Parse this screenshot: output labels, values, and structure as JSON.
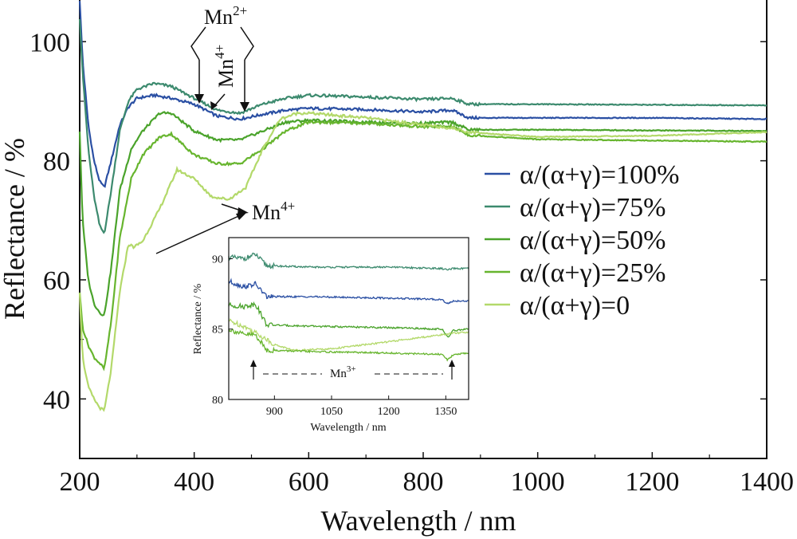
{
  "chart_data": [
    {
      "type": "line",
      "xlabel": "Wavelength / nm",
      "ylabel": "Reflectance / %",
      "xlim": [
        200,
        1400
      ],
      "ylim": [
        30,
        107
      ],
      "xticks": [
        200,
        400,
        600,
        800,
        1000,
        1200,
        1400
      ],
      "yticks": [
        40,
        60,
        80,
        100
      ],
      "legend_position": "right",
      "series": [
        {
          "name": "α/(α+γ)=100%",
          "color": "#2a4fa3",
          "x": [
            200,
            205,
            215,
            225,
            235,
            243,
            255,
            270,
            285,
            300,
            330,
            360,
            400,
            440,
            480,
            520,
            560,
            600,
            700,
            800,
            850,
            880,
            1000,
            1200,
            1400
          ],
          "y": [
            107,
            97,
            86,
            80,
            76.5,
            75.5,
            80,
            86,
            89,
            90.5,
            91,
            90.5,
            89.5,
            87.5,
            87,
            87.8,
            88.5,
            88.8,
            88.6,
            88.2,
            88.5,
            87.2,
            87.2,
            87.2,
            87
          ]
        },
        {
          "name": "α/(α+γ)=75%",
          "color": "#3c8a6e",
          "x": [
            200,
            205,
            215,
            225,
            235,
            243,
            255,
            270,
            285,
            300,
            330,
            360,
            400,
            440,
            480,
            520,
            560,
            600,
            700,
            800,
            850,
            880,
            1000,
            1200,
            1400
          ],
          "y": [
            104,
            95,
            82,
            74,
            69,
            67.8,
            75,
            85,
            90,
            92,
            93,
            92.5,
            90.5,
            88.5,
            88,
            89.5,
            90.5,
            91,
            90.7,
            90.3,
            90.5,
            89.5,
            89.5,
            89.4,
            89.3
          ]
        },
        {
          "name": "α/(α+γ)=50%",
          "color": "#4aa32b",
          "x": [
            200,
            205,
            215,
            225,
            235,
            243,
            255,
            270,
            290,
            310,
            340,
            360,
            400,
            440,
            480,
            520,
            560,
            600,
            700,
            800,
            850,
            880,
            1000,
            1200,
            1400
          ],
          "y": [
            85,
            70,
            60,
            56,
            54.5,
            54,
            62,
            75,
            82,
            85,
            88,
            88,
            85,
            83.5,
            83.5,
            85,
            86.5,
            86.8,
            86.5,
            86.3,
            86.5,
            85.2,
            85.2,
            85.1,
            85
          ]
        },
        {
          "name": "α/(α+γ)=25%",
          "color": "#67b52e",
          "x": [
            200,
            205,
            215,
            225,
            235,
            243,
            255,
            270,
            290,
            310,
            340,
            360,
            400,
            440,
            480,
            520,
            560,
            600,
            700,
            800,
            850,
            880,
            1000,
            1200,
            1400
          ],
          "y": [
            58,
            52,
            49,
            47,
            46,
            45,
            53,
            67,
            77,
            81,
            84,
            84.5,
            81,
            79.5,
            79.5,
            82,
            85,
            86.5,
            86.3,
            85.7,
            85.8,
            84.3,
            83.6,
            83.4,
            83.2
          ]
        },
        {
          "name": "α/(α+γ)=0",
          "color": "#b3d96a",
          "x": [
            200,
            205,
            215,
            225,
            235,
            243,
            255,
            270,
            285,
            295,
            310,
            340,
            370,
            400,
            430,
            460,
            490,
            520,
            550,
            580,
            600,
            700,
            800,
            850,
            880,
            1000,
            1200,
            1300,
            1400
          ],
          "y": [
            58,
            47,
            42,
            40,
            38.5,
            38,
            45,
            58,
            66,
            65.5,
            66.5,
            72,
            78.5,
            77,
            74,
            73.5,
            75.5,
            82,
            87,
            88,
            88,
            87.2,
            86,
            85.5,
            84.8,
            84,
            84.2,
            84.5,
            84.8
          ]
        }
      ],
      "annotations": [
        {
          "text": "Mn2+",
          "main": "Mn",
          "sup": "2+"
        },
        {
          "text": "Mn4+",
          "main": "Mn",
          "sup": "4+"
        },
        {
          "text": "Mn4+",
          "main": "Mn",
          "sup": "4+"
        }
      ]
    },
    {
      "type": "line",
      "xlabel": "Wavelength / nm",
      "ylabel": "Reflectance / %",
      "xlim": [
        780,
        1410
      ],
      "ylim": [
        80,
        91.5
      ],
      "xticks": [
        900,
        1050,
        1200,
        1350
      ],
      "yticks": [
        80,
        85,
        90
      ],
      "annotation": {
        "text": "Mn3+",
        "main": "Mn",
        "sup": "3+"
      },
      "series": [
        {
          "color": "#3c8a6e",
          "x": [
            780,
            820,
            850,
            880,
            1000,
            1200,
            1340,
            1355,
            1370,
            1410
          ],
          "y": [
            90.1,
            90.0,
            90.3,
            89.5,
            89.4,
            89.4,
            89.3,
            89.2,
            89.3,
            89.3
          ]
        },
        {
          "color": "#2a4fa3",
          "x": [
            780,
            820,
            850,
            880,
            1000,
            1200,
            1340,
            1355,
            1370,
            1410
          ],
          "y": [
            88.4,
            88.0,
            88.2,
            87.3,
            87.3,
            87.2,
            87.1,
            86.8,
            87.0,
            87.0
          ]
        },
        {
          "color": "#4aa32b",
          "x": [
            780,
            820,
            850,
            880,
            1000,
            1200,
            1340,
            1355,
            1370,
            1410
          ],
          "y": [
            86.7,
            86.6,
            86.8,
            85.3,
            85.2,
            85.1,
            85.0,
            84.4,
            84.9,
            85.0
          ]
        },
        {
          "color": "#b3d96a",
          "x": [
            780,
            820,
            860,
            900,
            950,
            1050,
            1200,
            1340,
            1370,
            1410
          ],
          "y": [
            85.6,
            85.2,
            84.6,
            83.9,
            83.5,
            83.6,
            84.1,
            84.6,
            84.7,
            84.8
          ]
        },
        {
          "color": "#67b52e",
          "x": [
            780,
            820,
            850,
            880,
            1000,
            1200,
            1340,
            1355,
            1370,
            1410
          ],
          "y": [
            85.0,
            84.6,
            84.6,
            83.5,
            83.4,
            83.3,
            83.2,
            82.8,
            83.2,
            83.3
          ]
        }
      ]
    }
  ]
}
